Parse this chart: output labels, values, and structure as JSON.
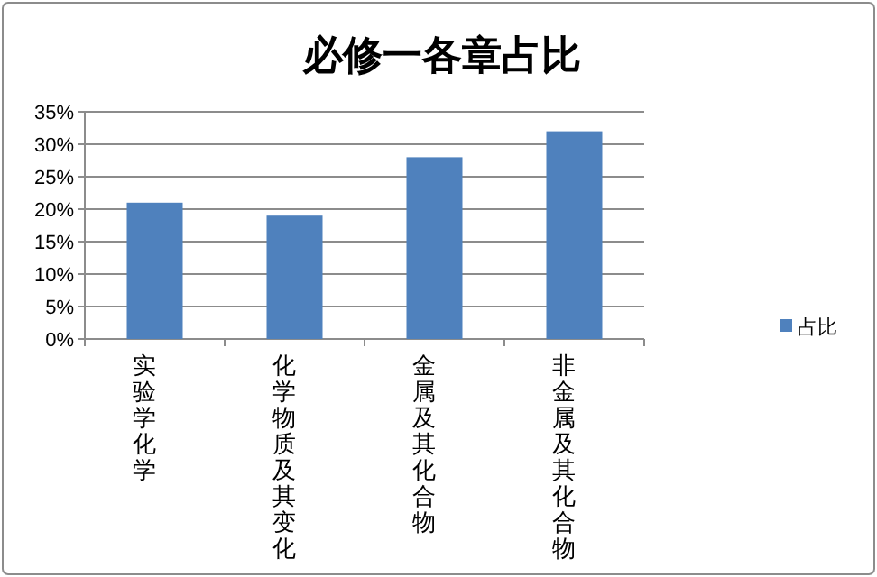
{
  "chart_data": {
    "type": "bar",
    "title": "必修一各章占比",
    "categories": [
      "实验学化学",
      "化学物质及其变化",
      "金属及其化合物",
      "非金属及其化合物"
    ],
    "series": [
      {
        "name": "占比",
        "color": "#4f81bd",
        "values": [
          21,
          19,
          28,
          32
        ]
      }
    ],
    "ylim": [
      0,
      35
    ],
    "yticks": [
      {
        "value": 0,
        "label": "0%"
      },
      {
        "value": 5,
        "label": "5%"
      },
      {
        "value": 10,
        "label": "10%"
      },
      {
        "value": 15,
        "label": "15%"
      },
      {
        "value": 20,
        "label": "20%"
      },
      {
        "value": 25,
        "label": "25%"
      },
      {
        "value": 30,
        "label": "30%"
      },
      {
        "value": 35,
        "label": "35%"
      }
    ],
    "grid": "y",
    "legend": "right"
  }
}
